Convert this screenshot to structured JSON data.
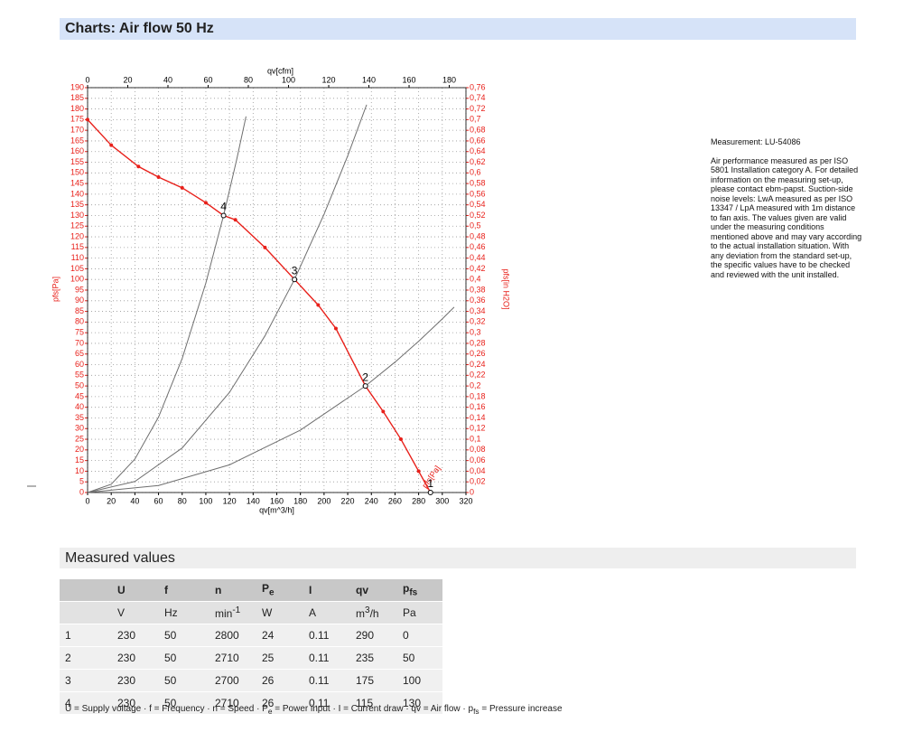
{
  "header": {
    "title": "Charts: Air flow 50 Hz"
  },
  "chart_data": {
    "type": "line",
    "x_label": "qv[m^3/h]",
    "x2_label": "qv[cfm]",
    "y_label": "pfs[Pa]",
    "y2_label": "pfs[in H2O]",
    "curve_label": "pfs[Pa]",
    "xlim": [
      0,
      320
    ],
    "xticks": [
      0,
      20,
      40,
      60,
      80,
      100,
      120,
      140,
      160,
      180,
      200,
      220,
      240,
      260,
      280,
      300,
      320
    ],
    "x2lim": [
      0,
      188.3
    ],
    "x2ticks": [
      0,
      20,
      40,
      60,
      80,
      100,
      120,
      140,
      160,
      180
    ],
    "ylim": [
      0,
      190
    ],
    "yticks": [
      0,
      5,
      10,
      15,
      20,
      25,
      30,
      35,
      40,
      45,
      50,
      55,
      60,
      65,
      70,
      75,
      80,
      85,
      90,
      95,
      100,
      105,
      110,
      115,
      120,
      125,
      130,
      135,
      140,
      145,
      150,
      155,
      160,
      165,
      170,
      175,
      180,
      185,
      190
    ],
    "y2lim": [
      0,
      0.76
    ],
    "y2ticks": [
      0,
      {
        "value": 0.02,
        "label": "0,02"
      },
      {
        "value": 0.04,
        "label": "0,04"
      },
      {
        "value": 0.06,
        "label": "0,06"
      },
      {
        "value": 0.08,
        "label": "0,08"
      },
      {
        "value": 0.1,
        "label": "0,1"
      },
      {
        "value": 0.12,
        "label": "0,12"
      },
      {
        "value": 0.14,
        "label": "0,14"
      },
      {
        "value": 0.16,
        "label": "0,16"
      },
      {
        "value": 0.18,
        "label": "0,18"
      },
      {
        "value": 0.2,
        "label": "0,2"
      },
      {
        "value": 0.22,
        "label": "0,22"
      },
      {
        "value": 0.24,
        "label": "0,24"
      },
      {
        "value": 0.26,
        "label": "0,26"
      },
      {
        "value": 0.28,
        "label": "0,28"
      },
      {
        "value": 0.3,
        "label": "0,3"
      },
      {
        "value": 0.32,
        "label": "0,32"
      },
      {
        "value": 0.34,
        "label": "0,34"
      },
      {
        "value": 0.36,
        "label": "0,36"
      },
      {
        "value": 0.38,
        "label": "0,38"
      },
      {
        "value": 0.4,
        "label": "0,4"
      },
      {
        "value": 0.42,
        "label": "0,42"
      },
      {
        "value": 0.44,
        "label": "0,44"
      },
      {
        "value": 0.46,
        "label": "0,46"
      },
      {
        "value": 0.48,
        "label": "0,48"
      },
      {
        "value": 0.5,
        "label": "0,5"
      },
      {
        "value": 0.52,
        "label": "0,52"
      },
      {
        "value": 0.54,
        "label": "0,54"
      },
      {
        "value": 0.56,
        "label": "0,56"
      },
      {
        "value": 0.58,
        "label": "0,58"
      },
      {
        "value": 0.6,
        "label": "0,6"
      },
      {
        "value": 0.62,
        "label": "0,62"
      },
      {
        "value": 0.64,
        "label": "0,64"
      },
      {
        "value": 0.66,
        "label": "0,66"
      },
      {
        "value": 0.68,
        "label": "0,68"
      },
      {
        "value": 0.7,
        "label": "0,7"
      },
      {
        "value": 0.72,
        "label": "0,72"
      },
      {
        "value": 0.74,
        "label": "0,74"
      },
      {
        "value": 0.76,
        "label": "0,76"
      }
    ],
    "grid": true,
    "series": [
      {
        "color": "#e8201a",
        "x": [
          0,
          20,
          43,
          60,
          80,
          100,
          115,
          125,
          150,
          175,
          195,
          210,
          235,
          250,
          265,
          280,
          290
        ],
        "values": [
          175,
          163,
          153,
          148,
          143,
          136,
          130,
          128,
          115,
          100,
          88,
          77,
          50,
          38,
          25,
          10,
          0
        ]
      },
      {
        "color": "#6e6e6e",
        "x": [
          0,
          20,
          40,
          60,
          80,
          100,
          115,
          126,
          134
        ],
        "values": [
          0,
          3.9,
          15.7,
          35.4,
          62.9,
          98.3,
          130,
          156,
          176.5
        ]
      },
      {
        "color": "#6e6e6e",
        "x": [
          0,
          40,
          80,
          120,
          150,
          175,
          200,
          220,
          236
        ],
        "values": [
          0,
          5.2,
          20.9,
          47,
          73.5,
          100,
          130.6,
          158,
          182
        ]
      },
      {
        "color": "#6e6e6e",
        "x": [
          0,
          60,
          120,
          180,
          235,
          260,
          280,
          300,
          310
        ],
        "values": [
          0,
          3.3,
          13,
          29.3,
          50,
          61.2,
          71,
          81.5,
          87
        ]
      }
    ],
    "points": [
      {
        "label": "1",
        "x": 290,
        "y": 0
      },
      {
        "label": "2",
        "x": 235,
        "y": 50
      },
      {
        "label": "3",
        "x": 175,
        "y": 100
      },
      {
        "label": "4",
        "x": 115,
        "y": 130
      }
    ]
  },
  "notes": {
    "measurement": "Measurement: LU-54086",
    "text": "Air performance measured as per ISO 5801 Installation category A. For detailed information on the measuring set-up, please contact ebm-papst. Suction-side noise levels: LwA measured as per ISO 13347 / LpA measured with 1m distance to fan axis. The values given are valid under the measuring conditions mentioned above and may vary according to the actual installation situation. With any deviation from the standard set-up, the specific values have to be checked and reviewed with the unit installed."
  },
  "table": {
    "title": "Measured values",
    "columns": [
      {
        "t": "U"
      },
      {
        "t": "f"
      },
      {
        "t": "n"
      },
      {
        "t": "P",
        "sub": "e"
      },
      {
        "t": "I"
      },
      {
        "t": "qv"
      },
      {
        "t": "p",
        "sub": "fs"
      }
    ],
    "units": [
      {
        "t": "V"
      },
      {
        "t": "Hz"
      },
      {
        "t": "min",
        "sup": "-1"
      },
      {
        "t": "W"
      },
      {
        "t": "A"
      },
      {
        "t": "m",
        "sup": "3",
        "rest": "/h"
      },
      {
        "t": "Pa"
      }
    ],
    "rows": [
      [
        "1",
        230,
        50,
        2800,
        24,
        0.11,
        290,
        0
      ],
      [
        "2",
        230,
        50,
        2710,
        25,
        0.11,
        235,
        50
      ],
      [
        "3",
        230,
        50,
        2700,
        26,
        0.11,
        175,
        100
      ],
      [
        "4",
        230,
        50,
        2710,
        26,
        0.11,
        115,
        130
      ]
    ],
    "footnote": [
      {
        "t": "U = Supply voltage · f = Frequency · n = Speed · P"
      },
      {
        "sub": "e"
      },
      {
        "t": " = Power input · I = Current draw · qv = Air flow · p"
      },
      {
        "sub": "fs"
      },
      {
        "t": " = Pressure increase"
      }
    ]
  }
}
